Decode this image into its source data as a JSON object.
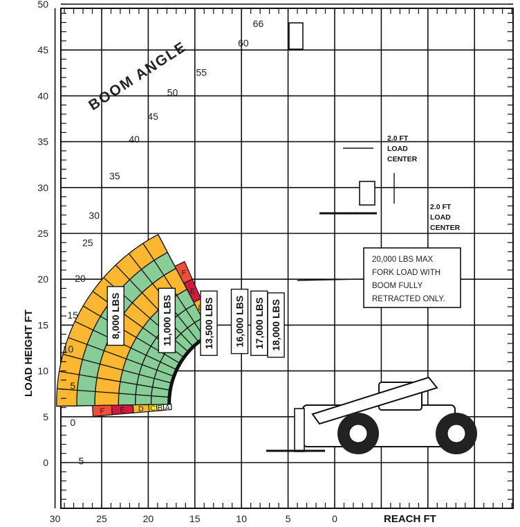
{
  "chart_data": {
    "type": "other",
    "xlabel": "REACH  FT",
    "ylabel": "LOAD HEIGHT  FT",
    "x_ticks": [
      "30",
      "25",
      "20",
      "15",
      "10",
      "5",
      "0"
    ],
    "y_ticks": [
      "50",
      "45",
      "40",
      "35",
      "30",
      "25",
      "20",
      "15",
      "10",
      "5",
      "0"
    ],
    "xlim": [
      30,
      -20
    ],
    "ylim": [
      -5,
      50
    ],
    "grid": true,
    "boom_angle_title": "BOOM ANGLE",
    "boom_angles": [
      {
        "label": "66",
        "x": 8.2,
        "y": 47.5
      },
      {
        "label": "60",
        "x": 9.8,
        "y": 45.4
      },
      {
        "label": "55",
        "x": 14.3,
        "y": 42.2
      },
      {
        "label": "50",
        "x": 17.4,
        "y": 40.0
      },
      {
        "label": "45",
        "x": 19.5,
        "y": 37.4
      },
      {
        "label": "40",
        "x": 21.5,
        "y": 34.9
      },
      {
        "label": "35",
        "x": 23.6,
        "y": 30.9
      },
      {
        "label": "30",
        "x": 25.8,
        "y": 26.6
      },
      {
        "label": "25",
        "x": 26.5,
        "y": 23.6
      },
      {
        "label": "20",
        "x": 27.3,
        "y": 19.7
      },
      {
        "label": "15",
        "x": 28.1,
        "y": 15.7
      },
      {
        "label": "10",
        "x": 28.6,
        "y": 12.0
      },
      {
        "label": "5",
        "x": 28.1,
        "y": 8.0
      },
      {
        "label": "0",
        "x": 28.1,
        "y": 4.0
      },
      {
        "label": "5",
        "x": 27.2,
        "y": -0.2
      }
    ],
    "capacity_zones": [
      {
        "label": "8,000 LBS",
        "x": 23.5,
        "y": 16.0,
        "color": "#fbb731"
      },
      {
        "label": "11,000 LBS",
        "x": 18.0,
        "y": 15.5,
        "color": "#88cc98"
      },
      {
        "label": "13,500 LBS",
        "x": 13.5,
        "y": 15.2,
        "color": "#fbb731"
      },
      {
        "label": "16,000 LBS",
        "x": 10.2,
        "y": 15.4,
        "color": "#88cc98"
      },
      {
        "label": "17,000 LBS",
        "x": 8.1,
        "y": 15.2,
        "color": "#88cc98"
      },
      {
        "label": "18,000 LBS",
        "x": 6.3,
        "y": 15.0,
        "color": "#88cc98"
      }
    ],
    "extension_zones": {
      "letters": [
        "A",
        "B",
        "C",
        "D",
        "E",
        "F"
      ],
      "colors": [
        "#ffffff",
        "#fff7c8",
        "#f9ec1c",
        "#fbb731",
        "#d21a3e",
        "#f04e3a"
      ]
    },
    "annotations": {
      "note": [
        "20,000 LBS MAX",
        "FORK LOAD WITH",
        "BOOM FULLY",
        "RETRACTED ONLY."
      ],
      "load_center_upper": [
        "2.0 FT",
        "LOAD",
        "CENTER"
      ],
      "load_center_lower": [
        "2.0 FT",
        "LOAD",
        "CENTER"
      ]
    },
    "colors": {
      "grid": "#111111",
      "green": "#88cc98",
      "orange": "#fbb731",
      "yellow": "#f9ec1c",
      "pale": "#fff7c8",
      "red": "#f04e3a",
      "crimson": "#d21a3e"
    }
  }
}
